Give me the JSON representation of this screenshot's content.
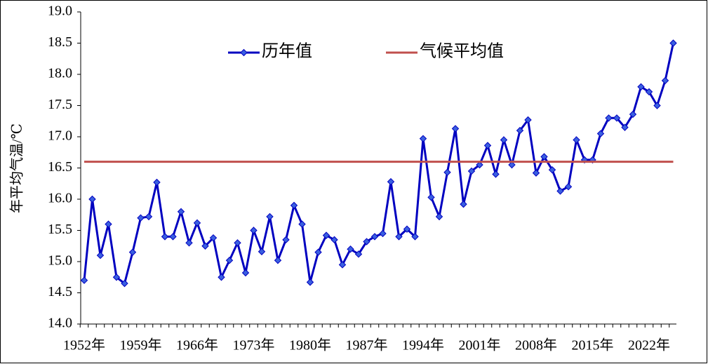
{
  "chart_data": {
    "type": "line",
    "y_label": "年平均气温/℃",
    "categories": [
      "1952年",
      null,
      null,
      null,
      null,
      null,
      null,
      "1959年",
      null,
      null,
      null,
      null,
      null,
      null,
      "1966年",
      null,
      null,
      null,
      null,
      null,
      null,
      "1973年",
      null,
      null,
      null,
      null,
      null,
      null,
      "1980年",
      null,
      null,
      null,
      null,
      null,
      null,
      "1987年",
      null,
      null,
      null,
      null,
      null,
      null,
      "1994年",
      null,
      null,
      null,
      null,
      null,
      null,
      "2001年",
      null,
      null,
      null,
      null,
      null,
      null,
      "2008年",
      null,
      null,
      null,
      null,
      null,
      null,
      "2015年",
      null,
      null,
      null,
      null,
      null,
      null,
      "2022年",
      null,
      null,
      null
    ],
    "series": [
      {
        "name": "历年值",
        "color": "#0000c0",
        "marker_color": "#3a5fe0",
        "values": [
          14.7,
          16.0,
          15.1,
          15.6,
          14.75,
          14.65,
          15.15,
          15.7,
          15.72,
          16.27,
          15.4,
          15.4,
          15.8,
          15.3,
          15.62,
          15.25,
          15.38,
          14.75,
          15.02,
          15.3,
          14.82,
          15.5,
          15.16,
          15.72,
          15.02,
          15.35,
          15.9,
          15.6,
          14.67,
          15.15,
          15.42,
          15.35,
          14.95,
          15.2,
          15.12,
          15.32,
          15.4,
          15.45,
          16.28,
          15.4,
          15.52,
          15.4,
          16.97,
          16.03,
          15.72,
          16.43,
          17.13,
          15.92,
          16.45,
          16.55,
          16.86,
          16.4,
          16.95,
          16.55,
          17.1,
          17.27,
          16.42,
          16.68,
          16.47,
          16.13,
          16.2,
          16.95,
          16.63,
          16.63,
          17.05,
          17.3,
          17.3,
          17.15,
          17.36,
          17.8,
          17.72,
          17.5,
          17.9,
          18.5
        ]
      },
      {
        "name": "气候平均值",
        "color": "#c0504d",
        "value": 16.6
      }
    ],
    "ylim": [
      14.0,
      19.0
    ],
    "yticks": [
      {
        "value": 14,
        "label": "14.0"
      },
      14.5,
      {
        "value": 15,
        "label": "15.0"
      },
      15.5,
      {
        "value": 16,
        "label": "16.0"
      },
      16.5,
      {
        "value": 17,
        "label": "17.0"
      },
      17.5,
      {
        "value": 18,
        "label": "18.0"
      },
      18.5,
      {
        "value": 19,
        "label": "19.0"
      }
    ],
    "grid": false,
    "legend": "top"
  }
}
